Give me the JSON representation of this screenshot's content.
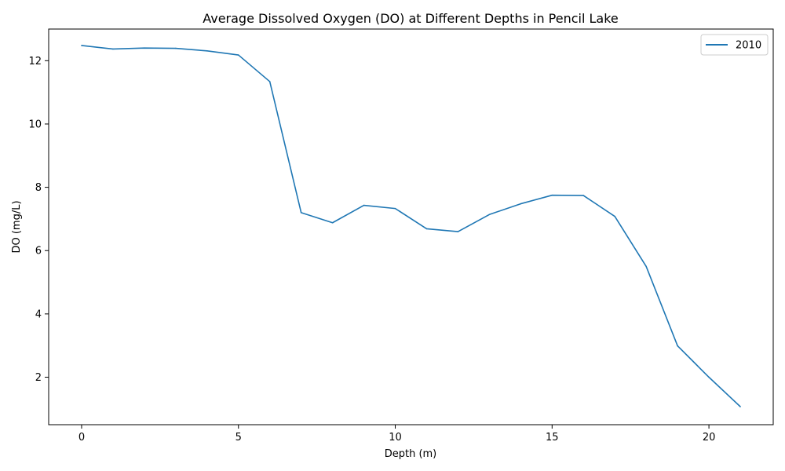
{
  "chart_data": {
    "type": "line",
    "title": "Average Dissolved Oxygen (DO) at Different Depths in Pencil Lake",
    "xlabel": "Depth (m)",
    "ylabel": "DO (mg/L)",
    "xlim": [
      -1.05,
      22.05
    ],
    "ylim": [
      0.5,
      13.0
    ],
    "xticks": [
      0,
      5,
      10,
      15,
      20
    ],
    "yticks": [
      2,
      4,
      6,
      8,
      10,
      12
    ],
    "grid": false,
    "legend_position": "top-right",
    "series": [
      {
        "name": "2010",
        "color": "#1f77b4",
        "x": [
          0,
          1,
          2,
          3,
          4,
          5,
          6,
          7,
          8,
          9,
          10,
          11,
          12,
          13,
          14,
          15,
          16,
          17,
          18,
          19,
          20,
          21
        ],
        "y": [
          12.48,
          12.37,
          12.4,
          12.39,
          12.31,
          12.18,
          11.34,
          7.2,
          6.88,
          7.43,
          7.33,
          6.69,
          6.6,
          7.14,
          7.48,
          7.75,
          7.74,
          7.08,
          5.5,
          2.99,
          2.0,
          1.07
        ]
      }
    ]
  }
}
